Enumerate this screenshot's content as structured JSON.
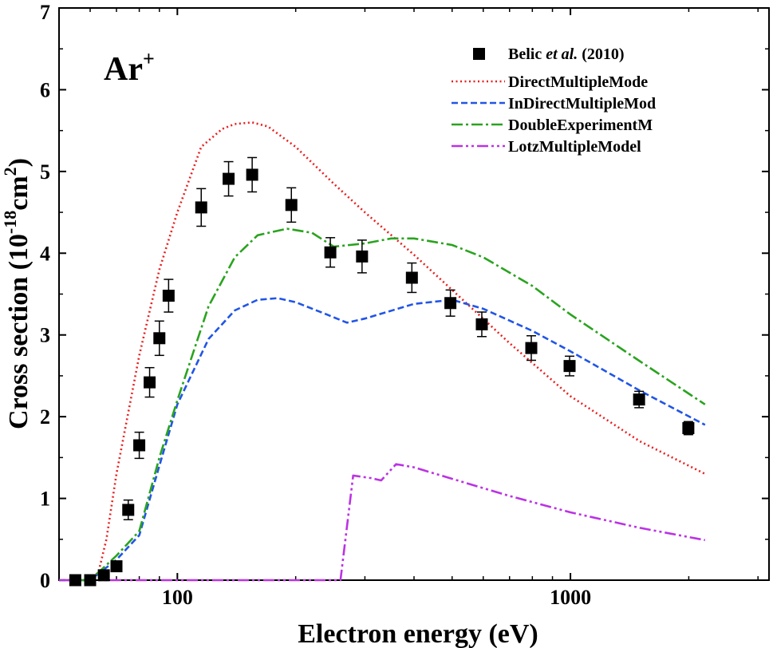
{
  "chart_data": {
    "type": "line",
    "title": "",
    "annotation": {
      "text": "Ar",
      "superscript": "+"
    },
    "xlabel": "Electron energy (eV)",
    "ylabel": {
      "prefix": "Cross section (10",
      "exp1": "-18",
      "mid": "cm",
      "exp2": "2",
      "suffix": ")"
    },
    "xscale": "log",
    "xlim": [
      50,
      3200
    ],
    "ylim": [
      0,
      7
    ],
    "x_ticks": [
      {
        "value": 100,
        "label": "100"
      },
      {
        "value": 1000,
        "label": "1000"
      }
    ],
    "y_ticks": [
      {
        "value": 0,
        "label": "0"
      },
      {
        "value": 1,
        "label": "1"
      },
      {
        "value": 2,
        "label": "2"
      },
      {
        "value": 3,
        "label": "3"
      },
      {
        "value": 4,
        "label": "4"
      },
      {
        "value": 5,
        "label": "5"
      },
      {
        "value": 6,
        "label": "6"
      },
      {
        "value": 7,
        "label": "7"
      }
    ],
    "legend_position": "top-right",
    "experiment": {
      "legend": {
        "name": "Belic ",
        "italic": "et al.",
        "suffix": " (2010)"
      },
      "color": "#000000",
      "x": [
        55,
        60,
        65,
        70,
        75,
        80,
        85,
        90,
        95,
        115,
        135,
        155,
        195,
        245,
        295,
        395,
        495,
        595,
        795,
        995,
        1495,
        1995
      ],
      "y": [
        0.0,
        0.0,
        0.06,
        0.17,
        0.86,
        1.65,
        2.42,
        2.96,
        3.48,
        4.56,
        4.91,
        4.96,
        4.59,
        4.01,
        3.96,
        3.7,
        3.39,
        3.13,
        2.84,
        2.62,
        2.21,
        1.86
      ],
      "err": [
        0.05,
        0.05,
        0.05,
        0.05,
        0.12,
        0.16,
        0.18,
        0.21,
        0.2,
        0.23,
        0.21,
        0.21,
        0.21,
        0.18,
        0.2,
        0.18,
        0.16,
        0.15,
        0.15,
        0.12,
        0.1,
        0.08
      ]
    },
    "series": [
      {
        "name": "DirectMultipleMode",
        "color": "#e8201f",
        "dash": "2 3.5",
        "x": [
          50,
          60,
          63,
          66,
          70,
          80,
          90,
          100,
          115,
          130,
          140,
          155,
          170,
          200,
          250,
          300,
          400,
          500,
          700,
          1000,
          1500,
          2200
        ],
        "y": [
          0,
          0,
          0.1,
          0.5,
          1.3,
          2.75,
          3.8,
          4.5,
          5.3,
          5.52,
          5.58,
          5.6,
          5.55,
          5.3,
          4.85,
          4.5,
          3.98,
          3.55,
          2.9,
          2.25,
          1.7,
          1.3
        ]
      },
      {
        "name": "InDirectMultipleMod",
        "color": "#2155e6",
        "dash": "8 4",
        "x": [
          50,
          60,
          70,
          80,
          90,
          100,
          120,
          140,
          160,
          180,
          200,
          240,
          270,
          300,
          400,
          500,
          600,
          800,
          1000,
          1500,
          2200
        ],
        "y": [
          0,
          0,
          0.25,
          0.55,
          1.4,
          2.15,
          2.95,
          3.3,
          3.43,
          3.45,
          3.4,
          3.25,
          3.15,
          3.2,
          3.38,
          3.43,
          3.32,
          3.05,
          2.8,
          2.32,
          1.9
        ]
      },
      {
        "name": "DoubleExperimentM",
        "color": "#2aa31f",
        "dash": "14 4 3 4",
        "x": [
          50,
          60,
          70,
          80,
          90,
          100,
          120,
          140,
          160,
          190,
          220,
          250,
          300,
          350,
          400,
          500,
          600,
          800,
          1000,
          1500,
          2200
        ],
        "y": [
          0,
          0,
          0.3,
          0.6,
          1.5,
          2.2,
          3.35,
          3.95,
          4.22,
          4.3,
          4.25,
          4.08,
          4.12,
          4.18,
          4.18,
          4.1,
          3.95,
          3.6,
          3.25,
          2.68,
          2.15
        ]
      },
      {
        "name": "LotzMultipleModel",
        "color": "#bb33e3",
        "dash": "14 4 3 4 3 4",
        "x": [
          50,
          260,
          280,
          310,
          330,
          360,
          400,
          500,
          700,
          1000,
          1500,
          2200
        ],
        "y": [
          0,
          0,
          1.28,
          1.25,
          1.22,
          1.42,
          1.38,
          1.24,
          1.03,
          0.83,
          0.64,
          0.49
        ]
      }
    ]
  }
}
